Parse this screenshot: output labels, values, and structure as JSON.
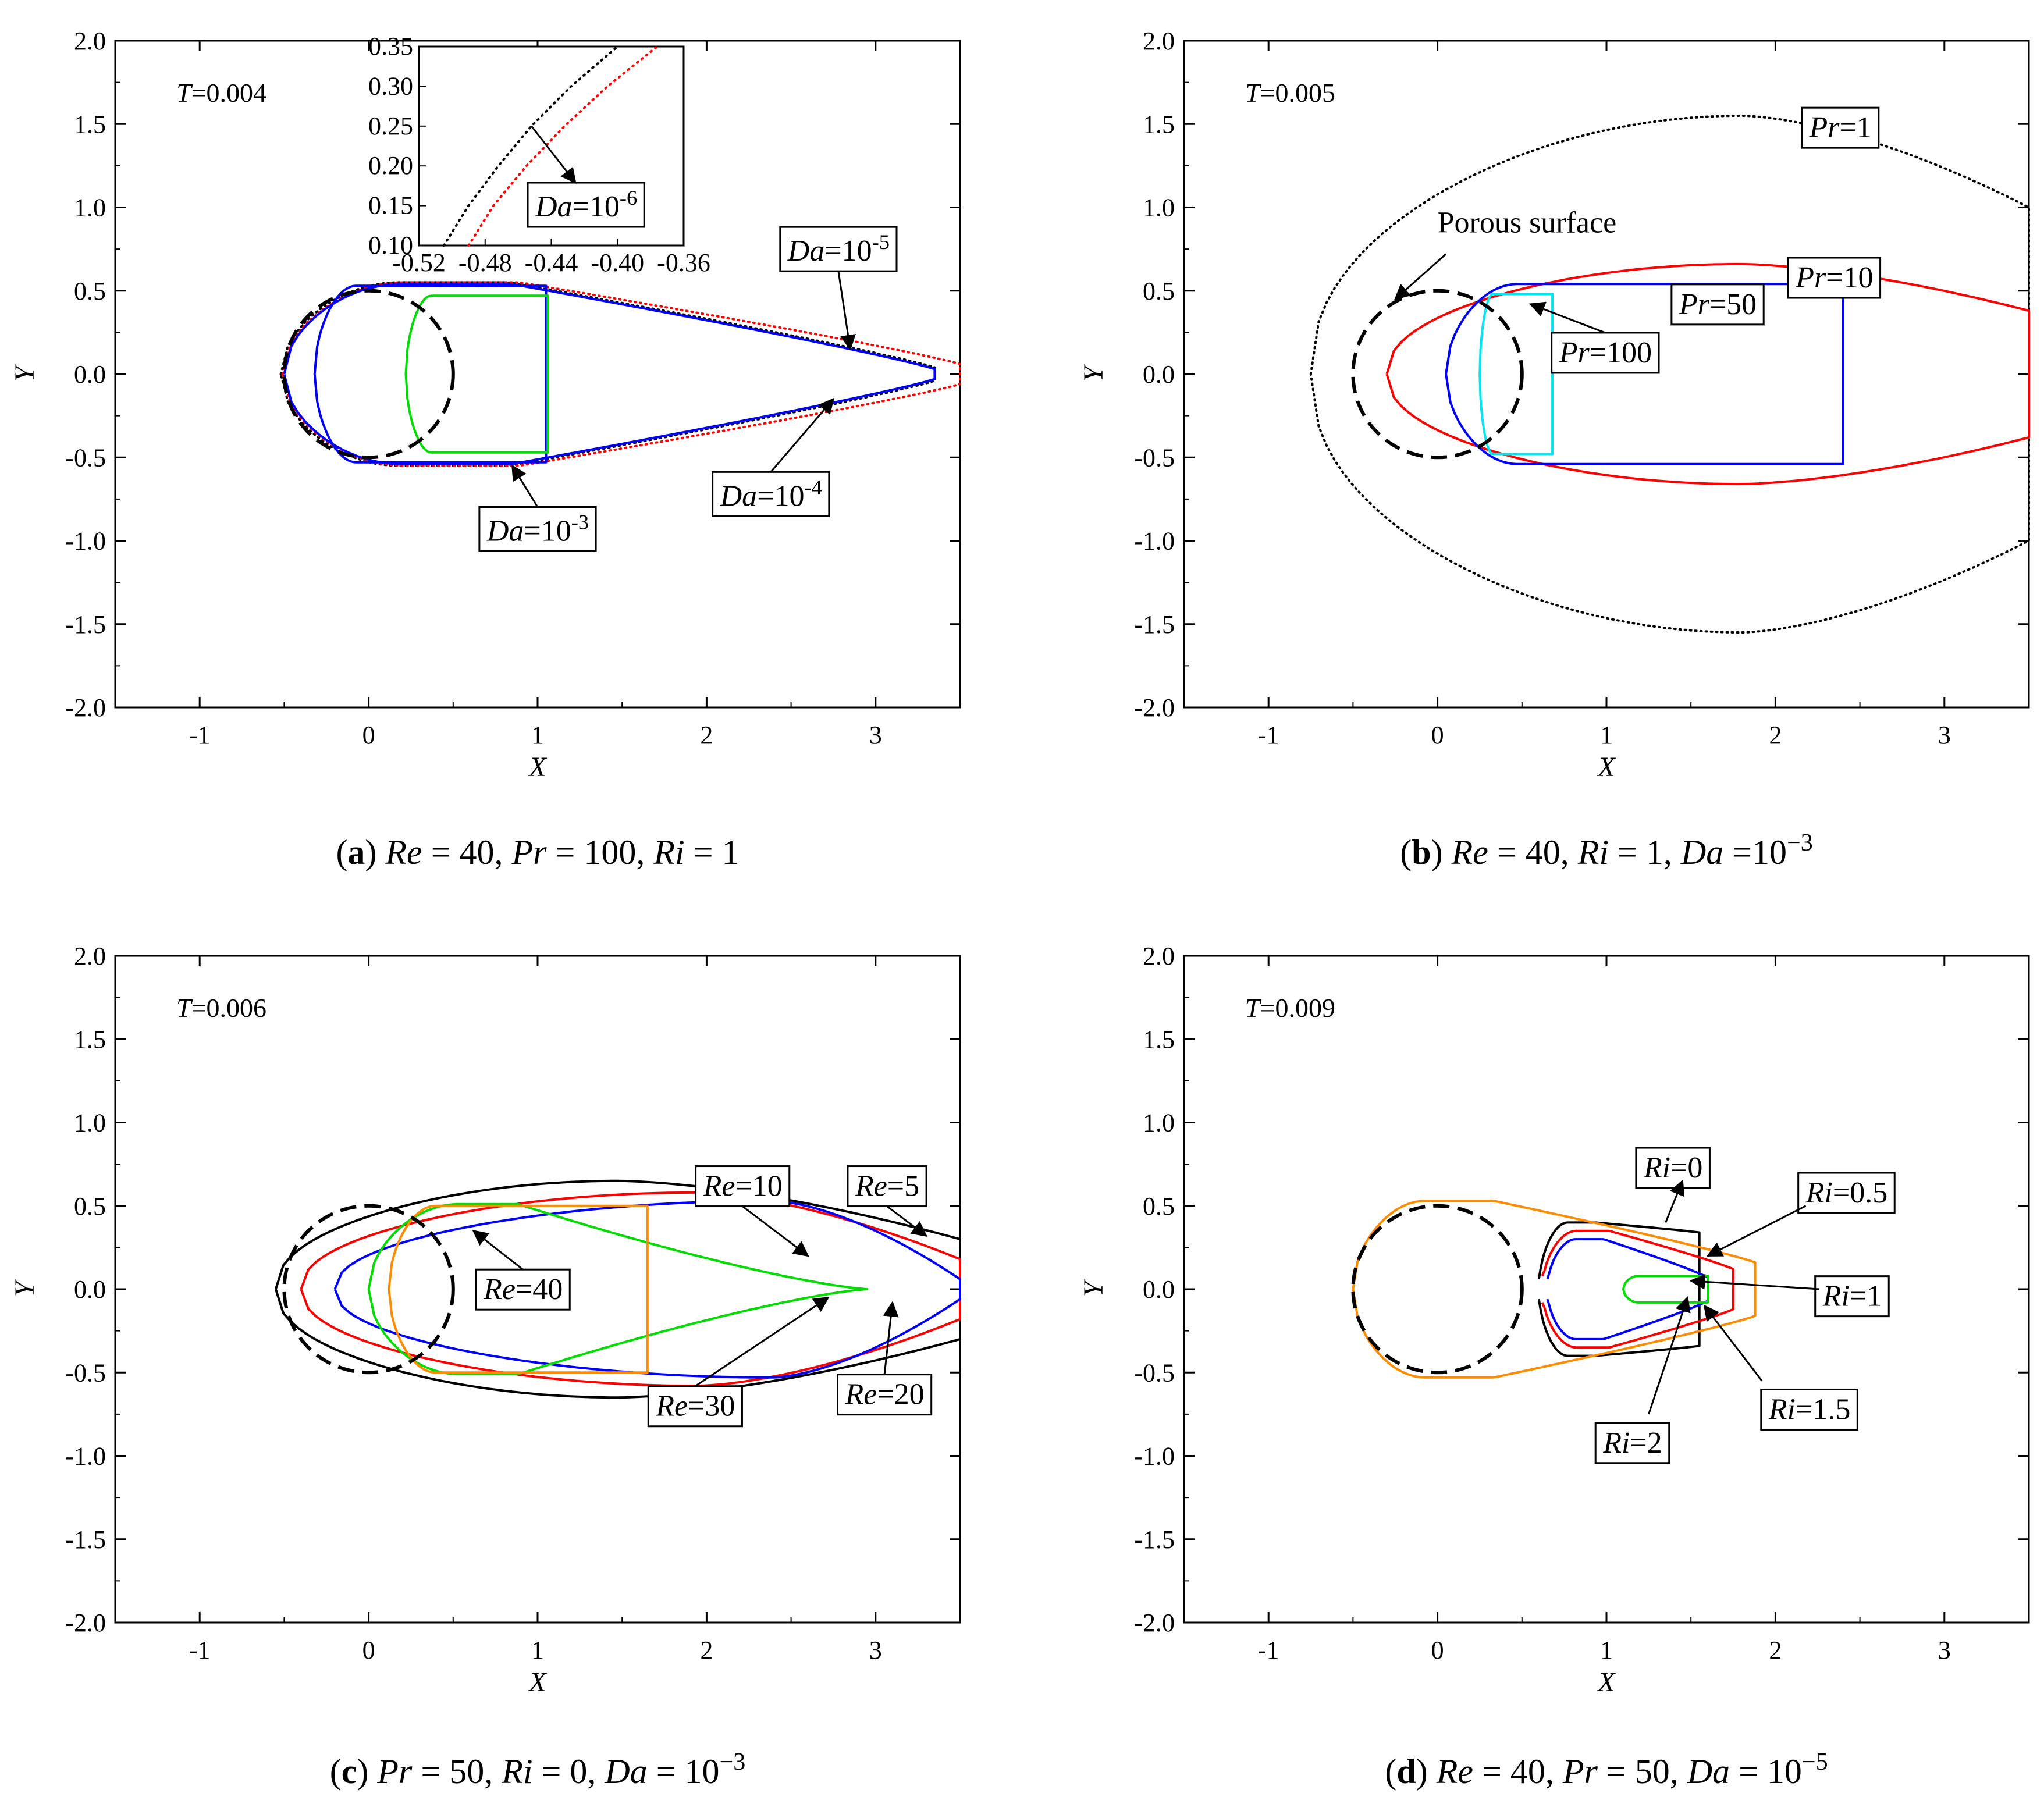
{
  "chart_data": [
    {
      "type": "line",
      "panel": "a",
      "time_label": {
        "var": "T",
        "val": "=0.004"
      },
      "caption": {
        "letter": "a",
        "rest": [
          {
            "t": " "
          },
          {
            "t": "Re",
            "i": true
          },
          {
            "t": " = 40, "
          },
          {
            "t": "Pr",
            "i": true
          },
          {
            "t": " = 100, "
          },
          {
            "t": "Ri",
            "i": true
          },
          {
            "t": " = 1"
          }
        ]
      },
      "xlabel": "X",
      "ylabel": "Y",
      "xlim": [
        -1.5,
        3.5
      ],
      "ylim": [
        -2.0,
        2.0
      ],
      "xticks": [
        "-1",
        "0",
        "1",
        "2",
        "3"
      ],
      "yticks": [
        "-2.0",
        "-1.5",
        "-1.0",
        "-0.5",
        "0.0",
        "0.5",
        "1.0",
        "1.5",
        "2.0"
      ],
      "porous_surface": {
        "cx": 0,
        "cy": 0,
        "r": 0.5
      },
      "series": [
        {
          "name": "Da=10^-6",
          "color": "#000000",
          "style": "dotted",
          "tail": "open",
          "x0": -0.52,
          "x1": 3.35,
          "h": 0.55,
          "t": 0.04
        },
        {
          "name": "Da=10^-5",
          "color": "#ff0000",
          "style": "dotted",
          "tail": "open",
          "x0": -0.51,
          "x1": 3.5,
          "h": 0.55,
          "t": 0.06
        },
        {
          "name": "Da=10^-4",
          "color": "#0000ff",
          "style": "solid",
          "tail": "open",
          "x0": -0.5,
          "x1": 3.35,
          "h": 0.54,
          "t": 0.03
        },
        {
          "name": "Da=10^-3",
          "color": "#0000ff",
          "style": "solid",
          "tail": "closed",
          "x0": -0.32,
          "x1": 1.05,
          "h": 0.53,
          "t": 0.42
        },
        {
          "name": "Da=10^-3 core",
          "color": "#00dd00",
          "style": "solid",
          "tail": "closed",
          "x0": 0.22,
          "x1": 1.06,
          "h": 0.47,
          "t": 0.42
        }
      ],
      "labels": [
        {
          "parts": [
            {
              "t": "Da",
              "i": true
            },
            {
              "t": "=10"
            },
            {
              "t": "-5",
              "sup": true
            }
          ]
        },
        {
          "parts": [
            {
              "t": "Da",
              "i": true
            },
            {
              "t": "=10"
            },
            {
              "t": "-4",
              "sup": true
            }
          ]
        },
        {
          "parts": [
            {
              "t": "Da",
              "i": true
            },
            {
              "t": "=10"
            },
            {
              "t": "-3",
              "sup": true
            }
          ]
        }
      ],
      "inset": {
        "xlim": [
          -0.52,
          -0.36
        ],
        "ylim": [
          0.1,
          0.35
        ],
        "xticks": [
          "-0.52",
          "-0.48",
          "-0.44",
          "-0.40",
          "-0.36"
        ],
        "yticks": [
          "0.10",
          "0.15",
          "0.20",
          "0.25",
          "0.30",
          "0.35"
        ],
        "series": [
          {
            "name": "black",
            "color": "#000000",
            "points": [
              [
                -0.505,
                0.1
              ],
              [
                -0.49,
                0.15
              ],
              [
                -0.472,
                0.2
              ],
              [
                -0.452,
                0.25
              ],
              [
                -0.428,
                0.3
              ],
              [
                -0.4,
                0.35
              ]
            ]
          },
          {
            "name": "red",
            "color": "#ff0000",
            "points": [
              [
                -0.49,
                0.1
              ],
              [
                -0.475,
                0.15
              ],
              [
                -0.455,
                0.2
              ],
              [
                -0.432,
                0.25
              ],
              [
                -0.406,
                0.3
              ],
              [
                -0.376,
                0.35
              ]
            ]
          }
        ],
        "label": {
          "parts": [
            {
              "t": "Da",
              "i": true
            },
            {
              "t": "=10"
            },
            {
              "t": "-6",
              "sup": true
            }
          ]
        }
      }
    },
    {
      "type": "line",
      "panel": "b",
      "time_label": {
        "var": "T",
        "val": "=0.005"
      },
      "caption": {
        "letter": "b",
        "rest": [
          {
            "t": " "
          },
          {
            "t": "Re",
            "i": true
          },
          {
            "t": " = 40, "
          },
          {
            "t": "Ri",
            "i": true
          },
          {
            "t": " = 1, "
          },
          {
            "t": "Da",
            "i": true
          },
          {
            "t": " =10"
          },
          {
            "t": "−3",
            "sup": true
          }
        ]
      },
      "xlabel": "X",
      "ylabel": "Y",
      "xlim": [
        -1.5,
        3.5
      ],
      "ylim": [
        -2.0,
        2.0
      ],
      "xticks": [
        "-1",
        "0",
        "1",
        "2",
        "3"
      ],
      "yticks": [
        "-2.0",
        "-1.5",
        "-1.0",
        "-0.5",
        "0.0",
        "0.5",
        "1.0",
        "1.5",
        "2.0"
      ],
      "porous_surface": {
        "cx": 0,
        "cy": 0,
        "r": 0.5
      },
      "series": [
        {
          "name": "Pr=1",
          "color": "#000000",
          "style": "dotted",
          "tail": "open",
          "x0": -0.75,
          "x1": 3.5,
          "h": 1.55,
          "t": 1.0,
          "s": 0.6
        },
        {
          "name": "Pr=10",
          "color": "#ff0000",
          "style": "solid",
          "tail": "open",
          "x0": -0.3,
          "x1": 3.5,
          "h": 0.66,
          "t": 0.38,
          "s": 0.55
        },
        {
          "name": "Pr=50",
          "color": "#0000ff",
          "style": "solid",
          "tail": "notch",
          "x0": 0.05,
          "x1": 2.4,
          "h": 0.54,
          "t": 0.5
        },
        {
          "name": "Pr=100",
          "color": "#00e5ee",
          "style": "solid",
          "tail": "closed",
          "x0": 0.25,
          "x1": 0.68,
          "h": 0.48,
          "t": 0.44
        }
      ],
      "surface_label": "Porous surface",
      "labels": [
        {
          "parts": [
            {
              "t": "Pr",
              "i": true
            },
            {
              "t": "=1"
            }
          ]
        },
        {
          "parts": [
            {
              "t": "Pr",
              "i": true
            },
            {
              "t": "=10"
            }
          ]
        },
        {
          "parts": [
            {
              "t": "Pr",
              "i": true
            },
            {
              "t": "=50"
            }
          ]
        },
        {
          "parts": [
            {
              "t": "Pr",
              "i": true
            },
            {
              "t": "=100"
            }
          ]
        }
      ]
    },
    {
      "type": "line",
      "panel": "c",
      "time_label": {
        "var": "T",
        "val": "=0.006"
      },
      "caption": {
        "letter": "c",
        "rest": [
          {
            "t": " "
          },
          {
            "t": "Pr",
            "i": true
          },
          {
            "t": " = 50, "
          },
          {
            "t": "Ri",
            "i": true
          },
          {
            "t": " = 0, "
          },
          {
            "t": "Da",
            "i": true
          },
          {
            "t": " = 10"
          },
          {
            "t": "−3",
            "sup": true
          }
        ]
      },
      "xlabel": "X",
      "ylabel": "Y",
      "xlim": [
        -1.5,
        3.5
      ],
      "ylim": [
        -2.0,
        2.0
      ],
      "xticks": [
        "-1",
        "0",
        "1",
        "2",
        "3"
      ],
      "yticks": [
        "-2.0",
        "-1.5",
        "-1.0",
        "-0.5",
        "0.0",
        "0.5",
        "1.0",
        "1.5",
        "2.0"
      ],
      "porous_surface": {
        "cx": 0,
        "cy": 0,
        "r": 0.5
      },
      "series": [
        {
          "name": "Re=5",
          "color": "#000000",
          "style": "solid",
          "tail": "open",
          "x0": -0.55,
          "x1": 3.5,
          "h": 0.65,
          "t": 0.3,
          "s": 0.5
        },
        {
          "name": "Re=10",
          "color": "#ff0000",
          "style": "solid",
          "tail": "open",
          "x0": -0.4,
          "x1": 3.5,
          "h": 0.58,
          "t": 0.18,
          "s": 0.6
        },
        {
          "name": "Re=20",
          "color": "#0000ff",
          "style": "solid",
          "tail": "open",
          "x0": -0.2,
          "x1": 3.5,
          "h": 0.53,
          "t": 0.06,
          "s": 0.7
        },
        {
          "name": "Re=30",
          "color": "#00dd00",
          "style": "solid",
          "tail": "point",
          "x0": 0.0,
          "x1": 2.95,
          "h": 0.51,
          "t": 0.0
        },
        {
          "name": "Re=40",
          "color": "#ff8c00",
          "style": "solid",
          "tail": "closed",
          "x0": 0.12,
          "x1": 1.65,
          "h": 0.5,
          "t": 0.36
        }
      ],
      "labels": [
        {
          "parts": [
            {
              "t": "Re",
              "i": true
            },
            {
              "t": "=5"
            }
          ]
        },
        {
          "parts": [
            {
              "t": "Re",
              "i": true
            },
            {
              "t": "=10"
            }
          ]
        },
        {
          "parts": [
            {
              "t": "Re",
              "i": true
            },
            {
              "t": "=20"
            }
          ]
        },
        {
          "parts": [
            {
              "t": "Re",
              "i": true
            },
            {
              "t": "=30"
            }
          ]
        },
        {
          "parts": [
            {
              "t": "Re",
              "i": true
            },
            {
              "t": "=40"
            }
          ]
        }
      ]
    },
    {
      "type": "line",
      "panel": "d",
      "time_label": {
        "var": "T",
        "val": "=0.009"
      },
      "caption": {
        "letter": "d",
        "rest": [
          {
            "t": " "
          },
          {
            "t": "Re",
            "i": true
          },
          {
            "t": " = 40, "
          },
          {
            "t": "Pr",
            "i": true
          },
          {
            "t": " = 50, "
          },
          {
            "t": "Da",
            "i": true
          },
          {
            "t": " = 10"
          },
          {
            "t": "−5",
            "sup": true
          }
        ]
      },
      "xlabel": "X",
      "ylabel": "Y",
      "xlim": [
        -1.5,
        3.5
      ],
      "ylim": [
        -2.0,
        2.0
      ],
      "xticks": [
        "-1",
        "0",
        "1",
        "2",
        "3"
      ],
      "yticks": [
        "-2.0",
        "-1.5",
        "-1.0",
        "-0.5",
        "0.0",
        "0.5",
        "1.0",
        "1.5",
        "2.0"
      ],
      "porous_surface": {
        "cx": 0,
        "cy": 0,
        "r": 0.5
      },
      "series": [
        {
          "name": "Ri=0",
          "color": "#000000",
          "style": "solid",
          "tail": "open",
          "x0": 0.6,
          "x1": 1.55,
          "h": 0.4,
          "t": 0.34,
          "w": 0.06
        },
        {
          "name": "Ri=0.5",
          "color": "#ff0000",
          "style": "solid",
          "tail": "open",
          "x0": 0.62,
          "x1": 1.75,
          "h": 0.35,
          "t": 0.12,
          "w": 0.08
        },
        {
          "name": "Ri=1",
          "color": "#0000ff",
          "style": "solid",
          "tail": "open",
          "x0": 0.65,
          "x1": 1.6,
          "h": 0.3,
          "t": 0.07,
          "w": 0.06
        },
        {
          "name": "Ri=1.5",
          "color": "#00dd00",
          "style": "solid",
          "tail": "closed",
          "x0": 1.1,
          "x1": 1.6,
          "h": 0.08,
          "t": 0.04
        },
        {
          "name": "Ri=2",
          "color": "#ff8c00",
          "style": "solid",
          "tail": "open",
          "x0": -0.5,
          "x1": 1.88,
          "h": 0.53,
          "t": 0.16
        }
      ],
      "labels": [
        {
          "parts": [
            {
              "t": "Ri",
              "i": true
            },
            {
              "t": "=0"
            }
          ]
        },
        {
          "parts": [
            {
              "t": "Ri",
              "i": true
            },
            {
              "t": "=0.5"
            }
          ]
        },
        {
          "parts": [
            {
              "t": "Ri",
              "i": true
            },
            {
              "t": "=1"
            }
          ]
        },
        {
          "parts": [
            {
              "t": "Ri",
              "i": true
            },
            {
              "t": "=1.5"
            }
          ]
        },
        {
          "parts": [
            {
              "t": "Ri",
              "i": true
            },
            {
              "t": "=2"
            }
          ]
        }
      ]
    }
  ]
}
